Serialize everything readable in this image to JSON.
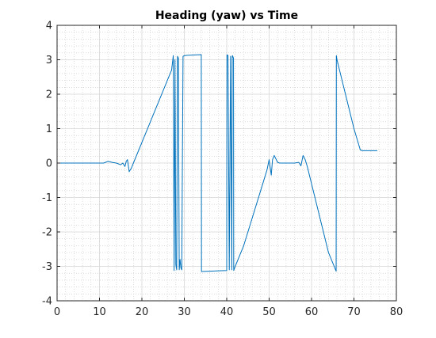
{
  "chart_data": {
    "type": "line",
    "title": "Heading (yaw) vs Time",
    "xlabel": "",
    "ylabel": "",
    "xlim": [
      0,
      80
    ],
    "ylim": [
      -4,
      4
    ],
    "x_ticks": [
      0,
      10,
      20,
      30,
      40,
      50,
      60,
      70,
      80
    ],
    "y_ticks": [
      -4,
      -3,
      -2,
      -1,
      0,
      1,
      2,
      3,
      4
    ],
    "x_tick_labels": [
      "0",
      "10",
      "20",
      "30",
      "40",
      "50",
      "60",
      "70",
      "80"
    ],
    "y_tick_labels": [
      "-4",
      "-3",
      "-2",
      "-1",
      "0",
      "1",
      "2",
      "3",
      "4"
    ],
    "grid": true,
    "minor_grid": true,
    "line_color": "#0072bd",
    "series": [
      {
        "x": [
          0,
          11,
          12,
          13,
          14,
          15,
          15.5,
          16,
          16.3,
          16.6,
          17,
          17.5,
          18,
          20,
          22,
          24,
          26,
          27,
          27.4,
          27.6,
          27.8,
          28.0,
          28.2,
          28.4,
          28.6,
          28.8,
          29.0,
          29.2,
          29.4,
          29.7,
          30.0,
          30.2,
          30.6,
          30.7,
          34,
          34.05,
          36,
          38,
          40,
          40.05,
          40.3,
          40.6,
          40.9,
          41.2,
          41.3,
          41.35,
          41.6,
          41.65,
          42,
          44,
          46,
          48,
          49.5,
          50.0,
          50.5,
          50.8,
          51.2,
          52,
          52.5,
          53,
          54,
          55,
          56,
          57,
          57.5,
          58,
          58.5,
          59,
          60,
          62,
          64,
          65.8,
          65.85,
          66,
          68,
          70,
          71.5,
          72,
          73,
          75.5
        ],
        "y": [
          0,
          0,
          0.05,
          0.02,
          0,
          -0.05,
          0,
          -0.1,
          0.05,
          0.1,
          -0.25,
          -0.15,
          0,
          0.6,
          1.2,
          1.8,
          2.4,
          2.7,
          3.12,
          -3.12,
          3.0,
          -2.95,
          -3.1,
          3.1,
          3.05,
          -3.1,
          -2.8,
          -3.05,
          -3.1,
          3.1,
          3.12,
          3.12,
          3.13,
          3.13,
          3.15,
          -3.15,
          -3.14,
          -3.13,
          -3.12,
          3.14,
          3.13,
          -3.1,
          3.1,
          -3.1,
          3.1,
          3.12,
          3.05,
          -3.12,
          -3.0,
          -2.4,
          -1.6,
          -0.8,
          -0.2,
          0.1,
          -0.35,
          0.1,
          0.22,
          0.02,
          0,
          0,
          0,
          0,
          0,
          0.02,
          -0.08,
          0.22,
          0.1,
          -0.1,
          -0.6,
          -1.6,
          -2.6,
          -3.14,
          3.12,
          3.0,
          2.0,
          1.0,
          0.38,
          0.36,
          0.36,
          0.36
        ]
      }
    ]
  }
}
